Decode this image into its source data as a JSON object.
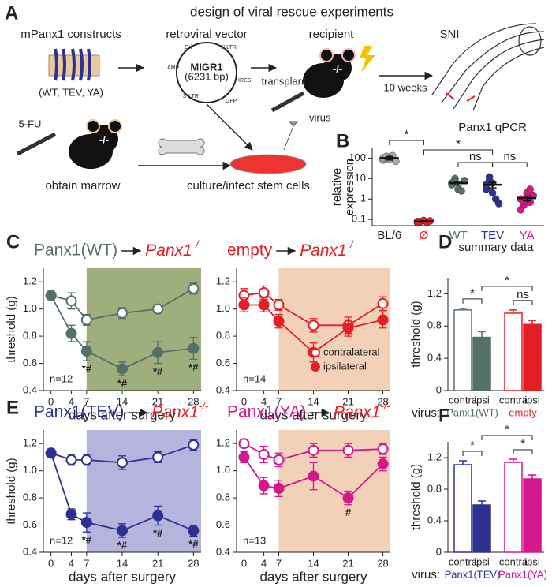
{
  "diagram": {
    "panel": "A",
    "title": "design of viral rescue experiments",
    "constructs": "mPanx1 constructs",
    "variants": "(WT, TEV, YA)",
    "vector": "retroviral vector",
    "plasmid": "MIGR1",
    "plasmid_size": "(6231 bp)",
    "plasmid_features": [
      "5' LTR",
      "IRES",
      "GFP",
      "3' LTR",
      "AMP",
      "Ori"
    ],
    "recipient": "recipient",
    "genotype": "-/-",
    "transplant": "transplant",
    "interval": "10 weeks",
    "injury": "SNI",
    "drug": "5-FU",
    "virus": "virus",
    "step_marrow": "obtain marrow",
    "step_culture": "culture/infect stem cells"
  },
  "chart_data": [
    {
      "type": "strip",
      "panel": "B",
      "title": "Panx1 qPCR",
      "ylabel": [
        "relative",
        "expression"
      ],
      "log": true,
      "ylim": [
        0.05,
        300
      ],
      "yticks": [
        0.1,
        1,
        10,
        100
      ],
      "categories": [
        "BL/6",
        "Ø",
        "WT",
        "TEV",
        "YA"
      ],
      "category_colors": [
        "#222222",
        "#e31e24",
        "#557068",
        "#2e3192",
        "#d4178a"
      ],
      "point_colors": [
        "#aaaaaa",
        "#e31e24",
        "#557068",
        "#2e3192",
        "#d4178a"
      ],
      "values": [
        100,
        0.08,
        6,
        5,
        1.1
      ],
      "errors": [
        20,
        0.005,
        1.2,
        1.5,
        0.3
      ],
      "points": [
        [
          80,
          95,
          110,
          130,
          70,
          100,
          120,
          90
        ],
        [
          0.07,
          0.08,
          0.09,
          0.075,
          0.085,
          0.08
        ],
        [
          6,
          10,
          3,
          2.5,
          8,
          5,
          7
        ],
        [
          5,
          12,
          2,
          1,
          0.6,
          3,
          8,
          6
        ],
        [
          1,
          0.5,
          2,
          0.7,
          1.5,
          0.3,
          0.8,
          1.2,
          3
        ]
      ],
      "significance": [
        {
          "from": 0,
          "to": 1,
          "label": "*"
        },
        {
          "from": 1,
          "to": 3,
          "label": "*"
        },
        {
          "from": 2,
          "to": 3,
          "label": "ns"
        },
        {
          "from": 3,
          "to": 4,
          "label": "ns"
        }
      ]
    },
    {
      "type": "line",
      "panel": "C",
      "title": "Panx1(WT)",
      "title_color": "#557068",
      "target": "Panx1",
      "target_superscript": "-/-",
      "target_color": "#e31e24",
      "xlabel": "days after surgery",
      "ylabel": "threshold (g)",
      "n_label": "n=12",
      "shade_from": 7,
      "shade_color": "#9fae7d",
      "x": [
        0,
        4,
        7,
        14,
        21,
        28
      ],
      "xlim": [
        -1.5,
        29.5
      ],
      "xticks": [
        0,
        4,
        7,
        14,
        21,
        28
      ],
      "ylim": [
        0.4,
        1.3
      ],
      "yticks": [
        0.4,
        0.6,
        0.8,
        {
          "value": 1,
          "label": "1.0"
        },
        1.2
      ],
      "series": [
        {
          "name": "contralateral",
          "color": "#557068",
          "marker": "open",
          "values": [
            1.1,
            1.06,
            0.92,
            0.97,
            1.0,
            1.15
          ],
          "errors": [
            0.03,
            0.06,
            0.04,
            0.04,
            0.03,
            0.04
          ]
        },
        {
          "name": "ipsilateral",
          "color": "#557068",
          "marker": "filled",
          "values": [
            1.1,
            0.82,
            0.69,
            0.56,
            0.68,
            0.71
          ],
          "errors": [
            0.03,
            0.06,
            0.07,
            0.05,
            0.08,
            0.08
          ],
          "point_labels": [
            null,
            null,
            "*#",
            "*#",
            "*#",
            "*#"
          ]
        }
      ]
    },
    {
      "type": "line",
      "title": "empty",
      "title_color": "#e31e24",
      "target": "Panx1",
      "target_superscript": "-/-",
      "target_color": "#e31e24",
      "xlabel": "days after surgery",
      "n_label": "n=14",
      "shade_from": 7,
      "shade_color": "#f3d1b9",
      "legend": "lower right",
      "x": [
        0,
        4,
        7,
        14,
        21,
        28
      ],
      "xlim": [
        -1.5,
        29.5
      ],
      "xticks": [
        0,
        4,
        7,
        14,
        21,
        28
      ],
      "ylim": [
        0.4,
        1.3
      ],
      "yticks": [
        0.4,
        0.6,
        0.8,
        {
          "value": 1,
          "label": "1.0"
        },
        1.2
      ],
      "series": [
        {
          "name": "contralateral",
          "color": "#e31e24",
          "marker": "open",
          "values": [
            1.1,
            1.12,
            1.03,
            0.88,
            0.88,
            1.04
          ],
          "errors": [
            0.05,
            0.05,
            0.04,
            0.05,
            0.06,
            0.05
          ]
        },
        {
          "name": "ipsilateral",
          "color": "#e31e24",
          "marker": "filled",
          "values": [
            1.03,
            1.03,
            0.91,
            0.68,
            0.86,
            0.92
          ],
          "errors": [
            0.05,
            0.05,
            0.05,
            0.07,
            0.06,
            0.06
          ]
        }
      ]
    },
    {
      "type": "bar",
      "panel": "D",
      "title": "summary data",
      "ylabel": "threshold (g)",
      "ylim": [
        0,
        1.4
      ],
      "yticks": [
        0,
        0.4,
        0.8,
        1.2
      ],
      "categories": [
        "contra",
        "ipsi",
        "contra",
        "ipsi"
      ],
      "values": [
        1.0,
        0.66,
        0.96,
        0.82
      ],
      "errors": [
        0.02,
        0.07,
        0.04,
        0.05
      ],
      "colors": [
        "#557068",
        "#557068",
        "#e31e24",
        "#e31e24"
      ],
      "filled": [
        false,
        true,
        false,
        true
      ],
      "group_prefix": "virus:",
      "group_labels": [
        "Panx1(WT)",
        "empty"
      ],
      "group_colors": [
        "#557068",
        "#e31e24"
      ],
      "significance": [
        {
          "from": 0,
          "to": 1,
          "label": "*"
        },
        {
          "from": 1,
          "to": 3,
          "label": "*"
        },
        {
          "from": 2,
          "to": 3,
          "label": "ns"
        }
      ]
    },
    {
      "type": "line",
      "panel": "E",
      "title": "Panx1(TEV)",
      "title_color": "#2e3192",
      "target": "Panx1",
      "target_superscript": "-/-",
      "target_color": "#e31e24",
      "xlabel": "days after surgery",
      "ylabel": "threshold (g)",
      "n_label": "n=12",
      "shade_from": 7,
      "shade_color": "#b4b4dc",
      "x": [
        0,
        4,
        7,
        14,
        21,
        28
      ],
      "xlim": [
        -1.5,
        29.5
      ],
      "xticks": [
        0,
        4,
        7,
        14,
        21,
        28
      ],
      "ylim": [
        0.4,
        1.3
      ],
      "yticks": [
        0.4,
        0.6,
        0.8,
        {
          "value": 1,
          "label": "1.0"
        },
        1.2
      ],
      "series": [
        {
          "name": "contralateral",
          "color": "#2e3192",
          "marker": "open",
          "values": [
            1.13,
            1.08,
            1.08,
            1.06,
            1.1,
            1.19
          ],
          "errors": [
            0.03,
            0.04,
            0.04,
            0.05,
            0.04,
            0.04
          ]
        },
        {
          "name": "ipsilateral",
          "color": "#2e3192",
          "marker": "filled",
          "values": [
            1.13,
            0.68,
            0.62,
            0.56,
            0.67,
            0.56
          ],
          "errors": [
            0.03,
            0.04,
            0.07,
            0.05,
            0.07,
            0.04
          ],
          "point_labels": [
            null,
            null,
            "*#",
            "*#",
            "*#",
            "*#"
          ]
        }
      ]
    },
    {
      "type": "line",
      "title": "Panx1(YA)",
      "title_color": "#d4178a",
      "target": "Panx1",
      "target_superscript": "-/-",
      "target_color": "#e31e24",
      "xlabel": "days after surgery",
      "n_label": "n=13",
      "shade_from": 7,
      "shade_color": "#f3d1b9",
      "x": [
        0,
        4,
        7,
        14,
        21,
        28
      ],
      "xlim": [
        -1.5,
        29.5
      ],
      "xticks": [
        0,
        4,
        7,
        14,
        21,
        28
      ],
      "ylim": [
        0.4,
        1.3
      ],
      "yticks": [
        0.4,
        0.6,
        0.8,
        {
          "value": 1,
          "label": "1.0"
        },
        1.2
      ],
      "series": [
        {
          "name": "contralateral",
          "color": "#d4178a",
          "marker": "open",
          "values": [
            1.2,
            1.12,
            1.08,
            1.15,
            1.15,
            1.16
          ],
          "errors": [
            0.03,
            0.06,
            0.05,
            0.05,
            0.05,
            0.04
          ]
        },
        {
          "name": "ipsilateral",
          "color": "#d4178a",
          "marker": "filled",
          "values": [
            1.1,
            0.89,
            0.87,
            0.96,
            0.8,
            1.05
          ],
          "errors": [
            0.04,
            0.06,
            0.06,
            0.1,
            0.05,
            0.05
          ],
          "point_labels": [
            null,
            null,
            null,
            null,
            "#",
            null
          ]
        }
      ]
    },
    {
      "type": "bar",
      "panel": "F",
      "ylabel": "threshold (g)",
      "ylim": [
        0,
        1.4
      ],
      "yticks": [
        0,
        0.4,
        0.8,
        1.2
      ],
      "categories": [
        "contra",
        "ipsi",
        "contra",
        "ipsi"
      ],
      "values": [
        1.11,
        0.6,
        1.14,
        0.93
      ],
      "errors": [
        0.05,
        0.05,
        0.04,
        0.05
      ],
      "colors": [
        "#2e3192",
        "#2e3192",
        "#d4178a",
        "#d4178a"
      ],
      "filled": [
        false,
        true,
        false,
        true
      ],
      "group_prefix": "virus:",
      "group_labels": [
        "Panx1(TEV)",
        "Panx1(YA)"
      ],
      "group_colors": [
        "#2e3192",
        "#d4178a"
      ],
      "significance": [
        {
          "from": 0,
          "to": 1,
          "label": "*"
        },
        {
          "from": 1,
          "to": 3,
          "label": "*"
        },
        {
          "from": 2,
          "to": 3,
          "label": "*"
        }
      ]
    }
  ]
}
